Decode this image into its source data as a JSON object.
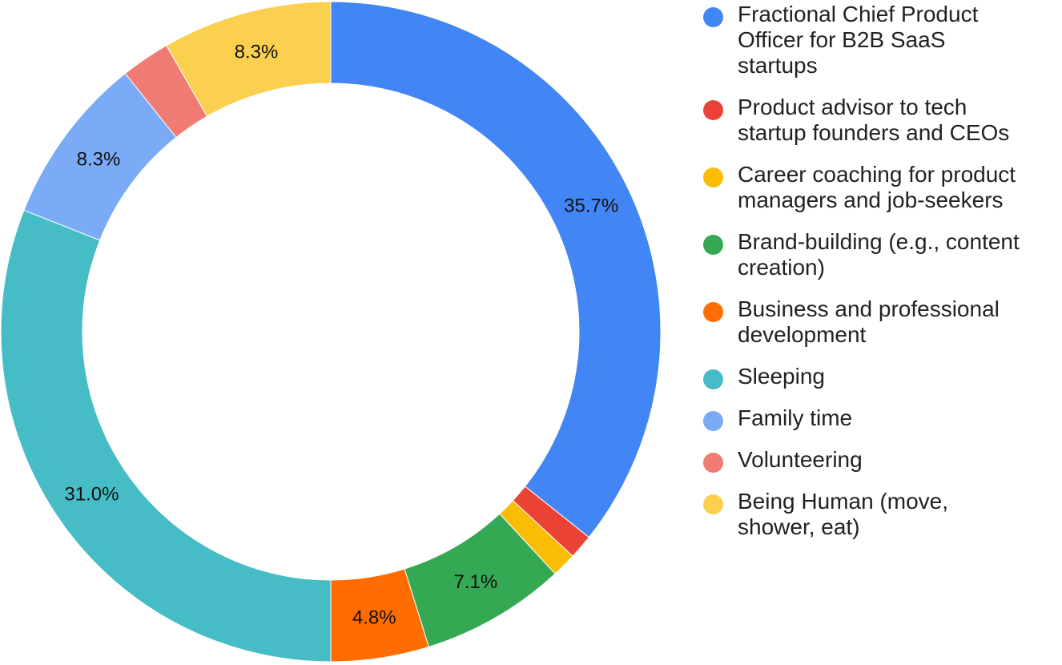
{
  "chart_data": {
    "type": "pie",
    "donut": true,
    "legend_position": "right",
    "slices": [
      {
        "label": "Fractional Chief Product Officer for B2B SaaS startups",
        "value": 35.7,
        "value_label": "35.7%",
        "color": "#4285F4"
      },
      {
        "label": "Product advisor to tech startup founders and CEOs",
        "value": 1.2,
        "value_label": "",
        "color": "#EA4335"
      },
      {
        "label": "Career coaching for product managers and job-seekers",
        "value": 1.2,
        "value_label": "",
        "color": "#FBBC04"
      },
      {
        "label": "Brand-building (e.g., content creation)",
        "value": 7.1,
        "value_label": "7.1%",
        "color": "#34A853"
      },
      {
        "label": "Business and professional development",
        "value": 4.8,
        "value_label": "4.8%",
        "color": "#FF6D01"
      },
      {
        "label": "Sleeping",
        "value": 31.0,
        "value_label": "31.0%",
        "color": "#46BDC6"
      },
      {
        "label": "Family time",
        "value": 8.3,
        "value_label": "8.3%",
        "color": "#7BAAF7"
      },
      {
        "label": "Volunteering",
        "value": 2.4,
        "value_label": "",
        "color": "#F07B72"
      },
      {
        "label": "Being Human (move, shower, eat)",
        "value": 8.3,
        "value_label": "8.3%",
        "color": "#FCD04F"
      }
    ]
  },
  "legend": {
    "items": [
      {
        "line1": "Fractional Chief Product",
        "line2": "Officer for B2B SaaS",
        "line3": "startups"
      },
      {
        "line1": "Product advisor to tech",
        "line2": "startup founders and CEOs",
        "line3": ""
      },
      {
        "line1": "Career coaching for product",
        "line2": "managers and job-seekers",
        "line3": ""
      },
      {
        "line1": "Brand-building (e.g., content",
        "line2": "creation)",
        "line3": ""
      },
      {
        "line1": "Business and professional",
        "line2": "development",
        "line3": ""
      },
      {
        "line1": "Sleeping",
        "line2": "",
        "line3": ""
      },
      {
        "line1": "Family time",
        "line2": "",
        "line3": ""
      },
      {
        "line1": "Volunteering",
        "line2": "",
        "line3": ""
      },
      {
        "line1": "Being Human (move,",
        "line2": "shower, eat)",
        "line3": ""
      }
    ]
  }
}
